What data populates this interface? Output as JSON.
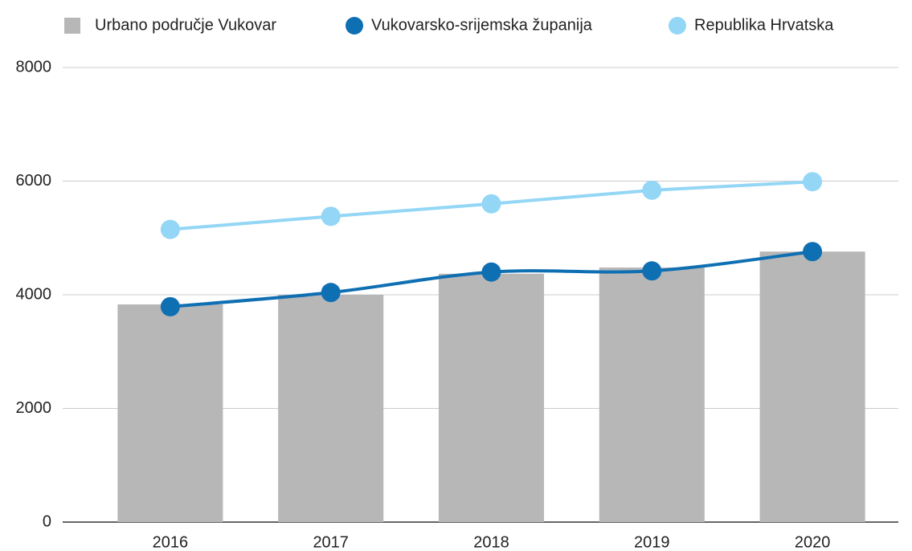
{
  "chart_data": {
    "type": "bar",
    "categories": [
      "2016",
      "2017",
      "2018",
      "2019",
      "2020"
    ],
    "series": [
      {
        "name": "Urbano područje Vukovar",
        "type": "bar",
        "color": "#b7b7b7",
        "values": [
          3830,
          4000,
          4370,
          4480,
          4760
        ]
      },
      {
        "name": "Vukovarsko-srijemska županija",
        "type": "line",
        "smooth": true,
        "color": "#0f6fb3",
        "values": [
          3790,
          4040,
          4400,
          4420,
          4760
        ]
      },
      {
        "name": "Republika Hrvatska",
        "type": "line",
        "smooth": false,
        "color": "#93d6f6",
        "values": [
          5150,
          5380,
          5600,
          5840,
          5990
        ]
      }
    ],
    "ylim": [
      0,
      8000
    ],
    "yticks": [
      0,
      2000,
      4000,
      6000,
      8000
    ],
    "grid": true,
    "legend": "top"
  }
}
